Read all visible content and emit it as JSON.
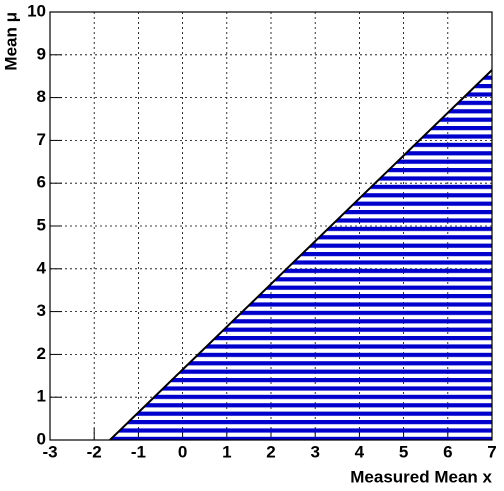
{
  "chart_data": {
    "type": "area",
    "x": [
      -1.645,
      7
    ],
    "values": [
      0,
      8.645
    ],
    "color": "#0000cc",
    "xlabel": "Measured Mean x",
    "ylabel": "Mean μ",
    "xlim": [
      -3,
      7
    ],
    "xticks": [
      -3,
      -2,
      -1,
      0,
      1,
      2,
      3,
      4,
      5,
      6,
      7
    ],
    "ylim": [
      0,
      10
    ],
    "yticks": [
      0,
      1,
      2,
      3,
      4,
      5,
      6,
      7,
      8,
      9,
      10
    ],
    "grid": true,
    "fill": "horizontal-hatch"
  }
}
